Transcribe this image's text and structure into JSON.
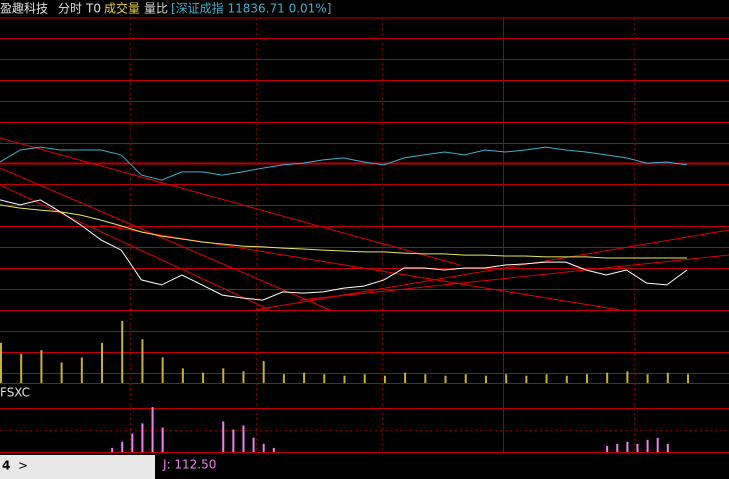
{
  "header": {
    "title": "盈趣科技",
    "tabs": [
      "分时",
      "T0"
    ],
    "ratio_label": "量比",
    "index_info": "[深证成指 11836.71 0.01%]"
  },
  "footer": {
    "tab": "4",
    "arrow": ">"
  },
  "chart_data": [
    {
      "type": "line",
      "ylim": [
        0,
        100
      ],
      "series": [
        {
          "color": "#ffffff",
          "values": [
            37.7,
            36.0,
            37.7,
            33.6,
            29.1,
            24.0,
            20.5,
            10.3,
            8.6,
            12.0,
            8.6,
            5.1,
            4.1,
            3.4,
            6.2,
            5.8,
            6.2,
            7.5,
            8.2,
            10.3,
            14.4,
            14.4,
            13.7,
            14.4,
            14.4,
            15.4,
            15.8,
            16.4,
            16.4,
            13.7,
            12.0,
            13.7,
            9.2,
            8.6,
            13.7
          ]
        },
        {
          "color": "#e8e860",
          "values": [
            36.0,
            34.9,
            34.2,
            33.6,
            32.5,
            30.8,
            28.8,
            26.7,
            25.3,
            24.3,
            23.3,
            22.6,
            21.9,
            21.6,
            21.2,
            20.9,
            20.5,
            20.2,
            19.9,
            19.9,
            19.5,
            19.2,
            19.2,
            18.8,
            18.8,
            18.5,
            18.5,
            18.2,
            18.2,
            18.2,
            17.8,
            17.8,
            17.8,
            17.8,
            17.8
          ]
        },
        {
          "color": "#40b0d0",
          "values": [
            50.7,
            54.8,
            55.8,
            54.8,
            54.8,
            54.8,
            53.1,
            46.2,
            44.5,
            47.3,
            47.3,
            46.2,
            47.3,
            48.6,
            49.7,
            50.3,
            51.4,
            52.1,
            50.7,
            49.7,
            52.1,
            53.1,
            54.1,
            53.1,
            54.8,
            54.1,
            54.8,
            55.8,
            54.8,
            54.1,
            53.1,
            52.1,
            50.3,
            50.7,
            49.7
          ]
        }
      ]
    },
    {
      "type": "bar",
      "title": "成交量",
      "color": "#c8b040",
      "ylim": [
        0,
        100
      ],
      "values": [
        55,
        40,
        45,
        28,
        35,
        55,
        85,
        60,
        35,
        20,
        14,
        20,
        16,
        30,
        12,
        14,
        12,
        10,
        12,
        10,
        14,
        12,
        10,
        12,
        10,
        12,
        10,
        12,
        10,
        12,
        14,
        16,
        12,
        14,
        12
      ]
    },
    {
      "type": "bar",
      "title": "FSXC",
      "annotation": "J: 112.50",
      "color": "#f080f0",
      "ylim": [
        0,
        120
      ],
      "values": [
        0,
        0,
        0,
        0,
        0,
        0,
        0,
        0,
        0,
        0,
        0,
        10,
        25,
        45,
        70,
        110,
        60,
        0,
        0,
        0,
        0,
        0,
        75,
        55,
        65,
        35,
        20,
        10,
        0,
        0,
        0,
        0,
        0,
        0,
        0,
        0,
        0,
        0,
        0,
        0,
        0,
        0,
        0,
        0,
        0,
        0,
        0,
        0,
        0,
        0,
        0,
        0,
        0,
        0,
        0,
        0,
        0,
        0,
        0,
        0,
        15,
        20,
        25,
        20,
        30,
        35,
        20,
        0,
        0
      ]
    }
  ]
}
